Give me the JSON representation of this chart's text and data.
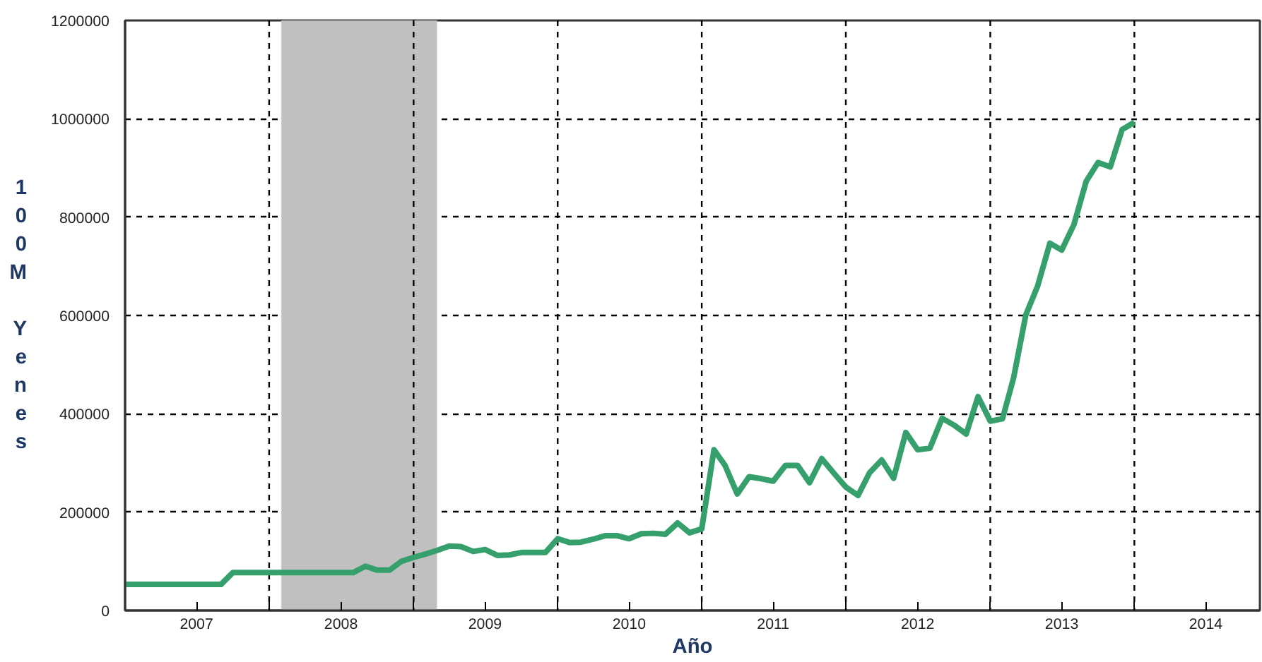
{
  "chart_data": {
    "type": "line",
    "xlabel": "Año",
    "ylabel": "100M Yenes",
    "x": [
      "2007-01",
      "2007-02",
      "2007-03",
      "2007-04",
      "2007-05",
      "2007-06",
      "2007-07",
      "2007-08",
      "2007-09",
      "2007-10",
      "2007-11",
      "2007-12",
      "2008-01",
      "2008-02",
      "2008-03",
      "2008-04",
      "2008-05",
      "2008-06",
      "2008-07",
      "2008-08",
      "2008-09",
      "2008-10",
      "2008-11",
      "2008-12",
      "2009-01",
      "2009-02",
      "2009-03",
      "2009-04",
      "2009-05",
      "2009-06",
      "2009-07",
      "2009-08",
      "2009-09",
      "2009-10",
      "2009-11",
      "2009-12",
      "2010-01",
      "2010-02",
      "2010-03",
      "2010-04",
      "2010-05",
      "2010-06",
      "2010-07",
      "2010-08",
      "2010-09",
      "2010-10",
      "2010-11",
      "2010-12",
      "2011-01",
      "2011-02",
      "2011-03",
      "2011-04",
      "2011-05",
      "2011-06",
      "2011-07",
      "2011-08",
      "2011-09",
      "2011-10",
      "2011-11",
      "2011-12",
      "2012-01",
      "2012-02",
      "2012-03",
      "2012-04",
      "2012-05",
      "2012-06",
      "2012-07",
      "2012-08",
      "2012-09",
      "2012-10",
      "2012-11",
      "2012-12",
      "2013-01",
      "2013-02",
      "2013-03",
      "2013-04",
      "2013-05",
      "2013-06",
      "2013-07",
      "2013-08",
      "2013-09",
      "2013-10",
      "2013-11",
      "2013-12",
      "2014-01"
    ],
    "series": [
      {
        "color": "#36a06c",
        "values": [
          53000,
          53000,
          53000,
          53000,
          53000,
          53000,
          53000,
          53000,
          53000,
          77000,
          77000,
          77000,
          77000,
          77000,
          77000,
          77000,
          77000,
          77000,
          77000,
          77000,
          90000,
          82000,
          82000,
          100000,
          108000,
          115000,
          122000,
          131000,
          130000,
          120000,
          124000,
          112000,
          113000,
          118000,
          118000,
          118000,
          146000,
          138000,
          139000,
          145000,
          152000,
          152000,
          146000,
          156000,
          157000,
          155000,
          178000,
          158000,
          166000,
          327000,
          295000,
          237000,
          272000,
          268000,
          263000,
          295000,
          295000,
          260000,
          309000,
          280000,
          251000,
          234000,
          280000,
          306000,
          269000,
          362000,
          327000,
          330000,
          391000,
          377000,
          359000,
          435000,
          385000,
          390000,
          473000,
          601000,
          660000,
          747000,
          733000,
          785000,
          873000,
          911000,
          902000,
          978000,
          993000
        ]
      }
    ],
    "xlim": [
      "2007-01-01",
      "2014-11-15"
    ],
    "xticks": [
      {
        "value": "2007-07-01",
        "label": "2007"
      },
      {
        "value": "2008-01-01",
        "label": null
      },
      {
        "value": "2008-07-01",
        "label": "2008"
      },
      {
        "value": "2009-01-01",
        "label": null
      },
      {
        "value": "2009-07-01",
        "label": "2009"
      },
      {
        "value": "2010-01-01",
        "label": null
      },
      {
        "value": "2010-07-01",
        "label": "2010"
      },
      {
        "value": "2011-01-01",
        "label": null
      },
      {
        "value": "2011-07-01",
        "label": "2011"
      },
      {
        "value": "2012-01-01",
        "label": null
      },
      {
        "value": "2012-07-01",
        "label": "2012"
      },
      {
        "value": "2013-01-01",
        "label": null
      },
      {
        "value": "2013-07-01",
        "label": "2013"
      },
      {
        "value": "2014-01-01",
        "label": null
      },
      {
        "value": "2014-07-01",
        "label": "2014"
      }
    ],
    "ylim": [
      0,
      1200000
    ],
    "yticks": [
      0,
      200000,
      400000,
      600000,
      800000,
      1000000,
      1200000
    ],
    "bands": [
      {
        "axis": "x",
        "from": "2008-02-01",
        "to": "2009-03-01",
        "color": "#c0c0c0"
      }
    ],
    "grid": true,
    "line_style": "solid",
    "marker": "none"
  }
}
